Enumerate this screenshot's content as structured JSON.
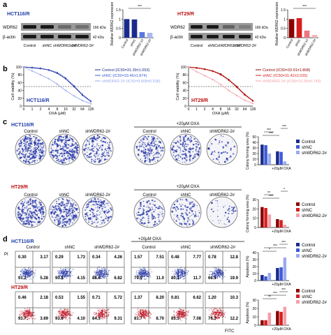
{
  "panels": {
    "a": {
      "letter": "a",
      "left": {
        "cell": "HCT116/R",
        "rows": [
          "WDR62",
          "β-actin"
        ],
        "kda": [
          "166 kDa",
          "42 kDa"
        ],
        "lanes": [
          "Control",
          "shNC",
          "shWDR62-1#",
          "shWDR62-2#"
        ],
        "ylabel": "Relative WDR62 expression",
        "sig": "***"
      },
      "right": {
        "cell": "HT29/R",
        "rows": [
          "WDR62",
          "β-actin"
        ],
        "kda": [
          "166 kDa",
          "42 kDa"
        ],
        "lanes": [
          "Control",
          "shNC",
          "shWDR62-1#",
          "shWDR62-2#"
        ],
        "ylabel": "Relative WDR62 expression",
        "sig": "***"
      }
    },
    "b": {
      "letter": "b",
      "ylabel": "Cell viability (%)",
      "xlabel": "OXA (μM)",
      "yticks": [
        "100",
        "80",
        "60",
        "40",
        "20",
        "0"
      ],
      "xticks": [
        "0",
        "1",
        "2",
        "4",
        "8",
        "16",
        "32",
        "64",
        "128"
      ],
      "left": {
        "cell": "HCT116/R",
        "legend": [
          "Control (IC50=31.39±1.053)",
          "shNC (IC50=33.46±1.874)",
          "shWDR62-2# (IC50=9.808±0.538)"
        ]
      },
      "right": {
        "cell": "HT29/R",
        "legend": [
          "Control (IC50=33.91±1.808)",
          "shNC (IC50=31.42±2.025)",
          "shWDR62-2# (IC50=10.35±0.743)"
        ]
      }
    },
    "c": {
      "letter": "c",
      "top_cell": "HCT116/R",
      "bottom_cell": "HT29/R",
      "col_labels": [
        "Control",
        "shNC",
        "shWDR62-2#"
      ],
      "oxa": "+20μM OXA",
      "ylabel": "Colony forming area (%)",
      "legend": [
        "Control",
        "shNC",
        "shWDR62-2#"
      ],
      "sig_top": [
        "***",
        "***",
        "***"
      ],
      "sig_bottom": [
        "***",
        "**",
        "*"
      ]
    },
    "d": {
      "letter": "d",
      "top_cell": "HCT116/R",
      "bottom_cell": "HT29/R",
      "col_labels": [
        "Control",
        "shNC",
        "shWDR62-2#"
      ],
      "oxa": "+20μM OXA",
      "pi": "PI",
      "fitc": "FITC",
      "ylabel": "Apoptosis (%)",
      "legend": [
        "Control",
        "shNC",
        "shWDR62-2#"
      ],
      "top_q": [
        [
          "0.30",
          "3.17",
          "91.2",
          "5.28"
        ],
        [
          "0.29",
          "1.73",
          "93.8",
          "4.15"
        ],
        [
          "0.34",
          "4.26",
          "88.6",
          "6.82"
        ],
        [
          "1.57",
          "7.51",
          "79.9",
          "11.0"
        ],
        [
          "0.48",
          "7.77",
          "80.1",
          "11.7"
        ],
        [
          "0.78",
          "12.8",
          "66.5",
          "19.9"
        ]
      ],
      "bottom_q": [
        [
          "0.46",
          "2.18",
          "93.7",
          "3.69"
        ],
        [
          "0.53",
          "1.55",
          "93.8",
          "4.10"
        ],
        [
          "0.71",
          "5.72",
          "84.3",
          "9.31"
        ],
        [
          "1.37",
          "8.20",
          "81.7",
          "8.70"
        ],
        [
          "0.81",
          "6.62",
          "85.5",
          "7.08"
        ],
        [
          "1.20",
          "10.3",
          "76.3",
          "12.2"
        ]
      ]
    }
  },
  "chart_data": [
    {
      "type": "bar",
      "title": "",
      "categories": [
        "Control",
        "shNC",
        "shWDR62-1#",
        "shWDR62-2#"
      ],
      "values": [
        1.0,
        0.98,
        0.3,
        0.26
      ],
      "ylabel": "Relative WDR62 expression",
      "ylim": [
        0,
        1.5
      ]
    },
    {
      "type": "bar",
      "title": "",
      "categories": [
        "Control",
        "shNC",
        "shWDR62-1#",
        "shWDR62-2#"
      ],
      "values": [
        1.0,
        1.05,
        0.38,
        0.15
      ],
      "ylabel": "Relative WDR62 expression",
      "ylim": [
        0,
        1.5
      ]
    },
    {
      "type": "line",
      "title": "",
      "x": [
        0,
        1,
        2,
        4,
        8,
        16,
        32,
        64,
        128
      ],
      "series": [
        {
          "name": "Control (IC50=31.39±1.053)",
          "values": [
            100,
            98,
            96,
            92,
            84,
            70,
            50,
            28,
            12
          ]
        },
        {
          "name": "shNC (IC50=33.46±1.874)",
          "values": [
            100,
            99,
            97,
            93,
            86,
            72,
            52,
            30,
            13
          ]
        },
        {
          "name": "shWDR62-2# (IC50=9.808±0.538)",
          "values": [
            100,
            90,
            80,
            70,
            56,
            40,
            26,
            14,
            6
          ]
        }
      ],
      "xlabel": "OXA (μM)",
      "ylabel": "Cell viability (%)",
      "ylim": [
        0,
        100
      ]
    },
    {
      "type": "line",
      "title": "",
      "x": [
        0,
        1,
        2,
        4,
        8,
        16,
        32,
        64,
        128
      ],
      "series": [
        {
          "name": "Control (IC50=33.91±1.808)",
          "values": [
            100,
            98,
            95,
            90,
            82,
            68,
            50,
            30,
            14
          ]
        },
        {
          "name": "shNC (IC50=31.42±2.025)",
          "values": [
            100,
            97,
            94,
            89,
            80,
            66,
            48,
            28,
            13
          ]
        },
        {
          "name": "shWDR62-2# (IC50=10.35±0.743)",
          "values": [
            100,
            88,
            78,
            68,
            55,
            40,
            27,
            15,
            7
          ]
        }
      ],
      "xlabel": "OXA (μM)",
      "ylabel": "Cell viability (%)",
      "ylim": [
        0,
        100
      ]
    },
    {
      "type": "bar",
      "title": "",
      "categories": [
        "",
        "+20μM OXA"
      ],
      "series": [
        {
          "name": "Control",
          "values": [
            36,
            24
          ]
        },
        {
          "name": "shNC",
          "values": [
            35,
            23
          ]
        },
        {
          "name": "shWDR62-2#",
          "values": [
            20,
            6
          ]
        }
      ],
      "ylabel": "Colony forming area (%)",
      "ylim": [
        0,
        50
      ]
    },
    {
      "type": "bar",
      "title": "",
      "categories": [
        "",
        "+20μM OXA"
      ],
      "series": [
        {
          "name": "Control",
          "values": [
            22,
            9
          ]
        },
        {
          "name": "shNC",
          "values": [
            21,
            8
          ]
        },
        {
          "name": "shWDR62-2#",
          "values": [
            14,
            3
          ]
        }
      ],
      "ylabel": "Colony forming area (%)",
      "ylim": [
        0,
        30
      ]
    },
    {
      "type": "bar",
      "title": "",
      "categories": [
        "",
        "+20μM OXA"
      ],
      "series": [
        {
          "name": "Control",
          "values": [
            8,
            18
          ]
        },
        {
          "name": "shNC",
          "values": [
            6,
            19
          ]
        },
        {
          "name": "shWDR62-2#",
          "values": [
            11,
            33
          ]
        }
      ],
      "ylabel": "Apoptosis (%)",
      "ylim": [
        0,
        40
      ]
    },
    {
      "type": "bar",
      "title": "",
      "categories": [
        "",
        "+20μM OXA"
      ],
      "series": [
        {
          "name": "Control",
          "values": [
            6,
            17
          ]
        },
        {
          "name": "shNC",
          "values": [
            6,
            16
          ]
        },
        {
          "name": "shWDR62-2#",
          "values": [
            15,
            22
          ]
        }
      ],
      "ylabel": "Apoptosis (%)",
      "ylim": [
        0,
        30
      ]
    }
  ]
}
